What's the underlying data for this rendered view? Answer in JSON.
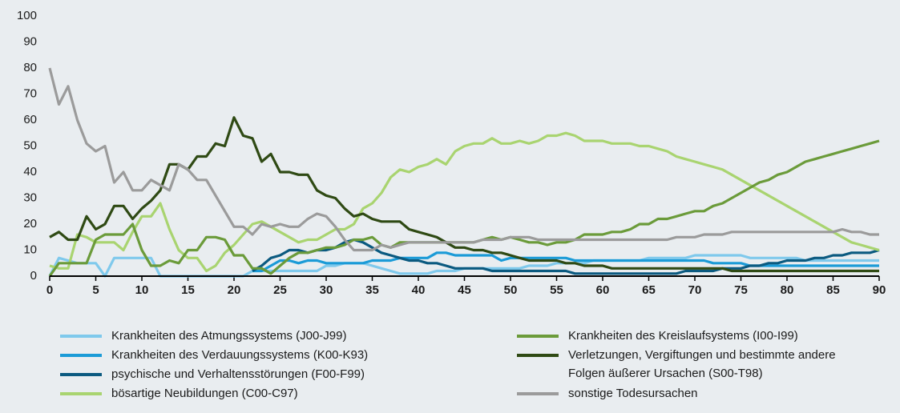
{
  "chart_data": {
    "type": "line",
    "x": [
      0,
      1,
      2,
      3,
      4,
      5,
      6,
      7,
      8,
      9,
      10,
      11,
      12,
      13,
      14,
      15,
      16,
      17,
      18,
      19,
      20,
      21,
      22,
      23,
      24,
      25,
      26,
      27,
      28,
      29,
      30,
      31,
      32,
      33,
      34,
      35,
      36,
      37,
      38,
      39,
      40,
      41,
      42,
      43,
      44,
      45,
      46,
      47,
      48,
      49,
      50,
      51,
      52,
      53,
      54,
      55,
      56,
      57,
      58,
      59,
      60,
      61,
      62,
      63,
      64,
      65,
      66,
      67,
      68,
      69,
      70,
      71,
      72,
      73,
      74,
      75,
      76,
      77,
      78,
      79,
      80,
      81,
      82,
      83,
      84,
      85,
      86,
      87,
      88,
      89,
      90
    ],
    "xlim": [
      0,
      90
    ],
    "xticks": [
      0,
      5,
      10,
      15,
      20,
      25,
      30,
      35,
      40,
      45,
      50,
      55,
      60,
      65,
      70,
      75,
      80,
      85,
      90
    ],
    "ylim": [
      0,
      100
    ],
    "yticks": [
      0,
      10,
      20,
      30,
      40,
      50,
      60,
      70,
      80,
      90,
      100
    ],
    "series": [
      {
        "name": "Krankheiten des Atmungssystems (J00-J99)",
        "color": "#7fc9ec",
        "values": [
          0,
          7,
          6,
          5,
          5,
          5,
          0,
          7,
          7,
          7,
          7,
          7,
          0,
          0,
          0,
          0,
          0,
          0,
          0,
          0,
          0,
          0,
          2,
          2,
          2,
          2,
          2,
          2,
          2,
          2,
          4,
          4,
          5,
          5,
          5,
          4,
          3,
          2,
          1,
          1,
          1,
          1,
          2,
          2,
          2,
          3,
          3,
          3,
          3,
          3,
          3,
          3,
          4,
          4,
          4,
          5,
          5,
          5,
          5,
          6,
          6,
          6,
          6,
          6,
          6,
          7,
          7,
          7,
          7,
          7,
          8,
          8,
          8,
          8,
          8,
          8,
          7,
          7,
          7,
          7,
          7,
          7,
          6,
          6,
          6,
          6,
          6,
          6,
          6,
          6,
          6
        ]
      },
      {
        "name": "Krankheiten des Verdauungssystems (K00-K93)",
        "color": "#1b9bd7",
        "values": [
          null,
          null,
          null,
          null,
          null,
          null,
          null,
          null,
          null,
          null,
          null,
          null,
          null,
          null,
          null,
          null,
          null,
          null,
          null,
          null,
          null,
          null,
          2,
          2,
          4,
          6,
          6,
          5,
          6,
          6,
          5,
          5,
          5,
          5,
          5,
          6,
          6,
          6,
          7,
          7,
          7,
          7,
          9,
          9,
          8,
          8,
          8,
          8,
          8,
          6,
          7,
          7,
          7,
          7,
          7,
          7,
          7,
          6,
          6,
          6,
          6,
          6,
          6,
          6,
          6,
          6,
          6,
          6,
          6,
          6,
          6,
          6,
          5,
          5,
          5,
          5,
          4,
          4,
          4,
          4,
          4,
          4,
          4,
          4,
          4,
          4,
          4,
          4,
          4,
          4,
          4
        ]
      },
      {
        "name": "psychische und Verhaltensstörungen (F00-F99)",
        "color": "#0b5a80",
        "values": [
          null,
          null,
          null,
          null,
          null,
          null,
          null,
          null,
          null,
          null,
          null,
          null,
          null,
          null,
          null,
          null,
          null,
          null,
          null,
          null,
          null,
          null,
          2,
          4,
          7,
          8,
          10,
          10,
          9,
          10,
          10,
          11,
          13,
          14,
          13,
          11,
          9,
          8,
          7,
          6,
          6,
          5,
          5,
          4,
          3,
          3,
          3,
          3,
          2,
          2,
          2,
          2,
          2,
          2,
          2,
          2,
          2,
          1,
          1,
          1,
          1,
          1,
          1,
          1,
          1,
          1,
          1,
          1,
          1,
          2,
          2,
          2,
          2,
          3,
          3,
          3,
          4,
          4,
          5,
          5,
          6,
          6,
          6,
          7,
          7,
          8,
          8,
          9,
          9,
          9,
          10
        ]
      },
      {
        "name": "bösartige Neubildungen (C00-C97)",
        "color": "#a9d470",
        "values": [
          4,
          3,
          3,
          16,
          15,
          13,
          13,
          13,
          10,
          17,
          23,
          23,
          28,
          18,
          10,
          7,
          7,
          2,
          4,
          9,
          12,
          16,
          20,
          21,
          19,
          17,
          15,
          13,
          14,
          14,
          16,
          18,
          18,
          20,
          26,
          28,
          32,
          38,
          41,
          40,
          42,
          43,
          45,
          43,
          48,
          50,
          51,
          51,
          53,
          51,
          51,
          52,
          51,
          52,
          54,
          54,
          55,
          54,
          52,
          52,
          52,
          51,
          51,
          51,
          50,
          50,
          49,
          48,
          46,
          45,
          44,
          43,
          42,
          41,
          39,
          37,
          35,
          33,
          31,
          29,
          27,
          25,
          23,
          21,
          19,
          17,
          15,
          13,
          12,
          11,
          10
        ]
      },
      {
        "name": "Krankheiten des Kreislaufsystems (I00-I99)",
        "color": "#6b9b3a",
        "values": [
          0,
          5,
          5,
          5,
          5,
          14,
          16,
          16,
          16,
          20,
          10,
          4,
          4,
          6,
          5,
          10,
          10,
          15,
          15,
          14,
          8,
          8,
          3,
          3,
          1,
          4,
          7,
          9,
          9,
          10,
          11,
          11,
          12,
          14,
          14,
          15,
          12,
          11,
          13,
          13,
          13,
          13,
          13,
          13,
          13,
          13,
          13,
          14,
          15,
          14,
          15,
          14,
          13,
          13,
          12,
          13,
          13,
          14,
          16,
          16,
          16,
          17,
          17,
          18,
          20,
          20,
          22,
          22,
          23,
          24,
          25,
          25,
          27,
          28,
          30,
          32,
          34,
          36,
          37,
          39,
          40,
          42,
          44,
          45,
          46,
          47,
          48,
          49,
          50,
          51,
          52
        ]
      },
      {
        "name": "Verletzungen, Vergiftungen und bestimmte andere Folgen äußerer Ursachen (S00-T98)",
        "color": "#2f4a14",
        "values": [
          15,
          17,
          14,
          14,
          23,
          18,
          20,
          27,
          27,
          22,
          26,
          29,
          33,
          43,
          43,
          41,
          46,
          46,
          51,
          50,
          61,
          54,
          53,
          44,
          47,
          40,
          40,
          39,
          39,
          33,
          31,
          30,
          26,
          23,
          24,
          22,
          21,
          21,
          21,
          18,
          17,
          16,
          15,
          13,
          11,
          11,
          10,
          10,
          9,
          9,
          8,
          7,
          6,
          6,
          6,
          6,
          5,
          5,
          4,
          4,
          4,
          3,
          3,
          3,
          3,
          3,
          3,
          3,
          3,
          3,
          3,
          3,
          3,
          3,
          2,
          2,
          2,
          2,
          2,
          2,
          2,
          2,
          2,
          2,
          2,
          2,
          2,
          2,
          2,
          2,
          2
        ]
      },
      {
        "name": "sonstige Todesursachen",
        "color": "#9b9b9b",
        "values": [
          80,
          66,
          73,
          60,
          51,
          48,
          50,
          36,
          40,
          33,
          33,
          37,
          35,
          33,
          43,
          41,
          37,
          37,
          31,
          25,
          19,
          19,
          16,
          20,
          19,
          20,
          19,
          19,
          22,
          24,
          23,
          19,
          14,
          10,
          10,
          10,
          12,
          11,
          12,
          13,
          13,
          13,
          13,
          13,
          13,
          13,
          13,
          14,
          14,
          14,
          15,
          15,
          15,
          14,
          14,
          14,
          14,
          14,
          14,
          14,
          14,
          14,
          14,
          14,
          14,
          14,
          14,
          14,
          15,
          15,
          15,
          16,
          16,
          16,
          17,
          17,
          17,
          17,
          17,
          17,
          17,
          17,
          17,
          17,
          17,
          17,
          18,
          17,
          17,
          16,
          16
        ]
      }
    ]
  }
}
